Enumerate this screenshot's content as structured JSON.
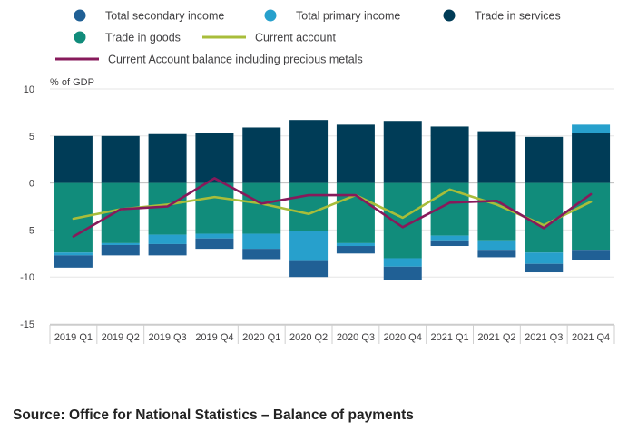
{
  "chart_data": {
    "type": "bar",
    "stacked": true,
    "ylabel": "% of GDP",
    "ylim": [
      -15,
      10
    ],
    "yticks": [
      10,
      5,
      0,
      -5,
      -10,
      -15
    ],
    "categories": [
      "2019 Q1",
      "2019 Q2",
      "2019 Q3",
      "2019 Q4",
      "2020 Q1",
      "2020 Q2",
      "2020 Q3",
      "2020 Q4",
      "2021 Q1",
      "2021 Q2",
      "2021 Q3",
      "2021 Q4"
    ],
    "series": [
      {
        "name": "Total secondary income",
        "kind": "bar",
        "color": "#206095",
        "values": [
          -1.3,
          -1.1,
          -1.2,
          -1.1,
          -1.1,
          -1.7,
          -0.8,
          -1.4,
          -0.6,
          -0.7,
          -0.9,
          -1.0
        ]
      },
      {
        "name": "Total primary income",
        "kind": "bar",
        "color": "#27a0cc",
        "values": [
          -0.3,
          -0.2,
          -1.0,
          -0.5,
          -1.6,
          -3.2,
          -0.3,
          -0.9,
          -0.5,
          -1.1,
          -1.2,
          0.9
        ]
      },
      {
        "name": "Trade in services",
        "kind": "bar",
        "color": "#003c57",
        "values": [
          5.0,
          5.0,
          5.2,
          5.3,
          5.9,
          6.7,
          6.2,
          6.6,
          6.0,
          5.5,
          4.9,
          5.3
        ]
      },
      {
        "name": "Trade in goods",
        "kind": "bar",
        "color": "#118c7b",
        "values": [
          -7.4,
          -6.4,
          -5.5,
          -5.4,
          -5.4,
          -5.1,
          -6.4,
          -8.0,
          -5.6,
          -6.1,
          -7.4,
          -7.2
        ]
      },
      {
        "name": "Current account",
        "kind": "line",
        "color": "#a8bd3a",
        "values": [
          -3.8,
          -2.8,
          -2.3,
          -1.5,
          -2.2,
          -3.3,
          -1.3,
          -3.7,
          -0.7,
          -2.3,
          -4.5,
          -2.0
        ]
      },
      {
        "name": "Current Account balance including precious metals",
        "kind": "line",
        "color": "#871a5b",
        "values": [
          -5.7,
          -2.8,
          -2.5,
          0.5,
          -2.2,
          -1.3,
          -1.3,
          -4.7,
          -2.1,
          -1.9,
          -4.8,
          -1.2
        ]
      }
    ]
  },
  "source": "Source: Office for National Statistics – Balance of payments"
}
